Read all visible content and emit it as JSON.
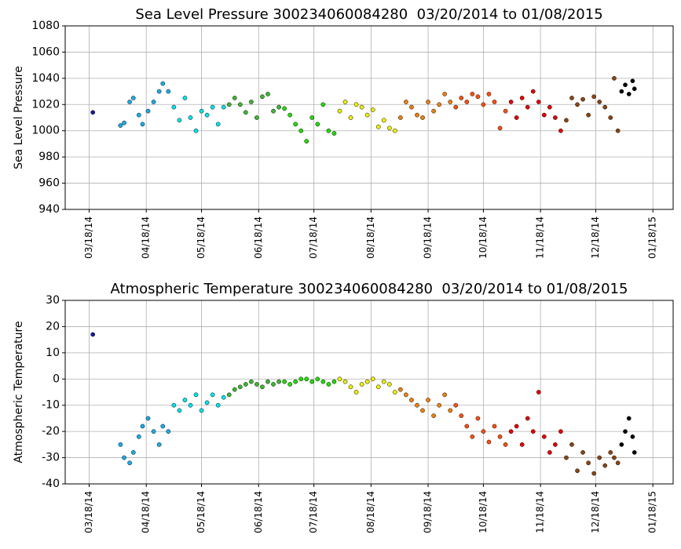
{
  "chart_data": [
    {
      "type": "scatter",
      "title": "Sea Level Pressure 300234060084280  03/20/2014 to 01/08/2015",
      "ylabel": "Sea Level Pressure",
      "xlim": [
        "03/05/14",
        "01/29/15"
      ],
      "xticks": [
        "03/18/14",
        "04/18/14",
        "05/18/14",
        "06/18/14",
        "07/18/14",
        "08/18/14",
        "09/18/14",
        "10/18/14",
        "11/18/14",
        "12/18/14",
        "01/18/15"
      ],
      "ylim": [
        940,
        1080
      ],
      "yticks": [
        940,
        960,
        980,
        1000,
        1020,
        1040,
        1060,
        1080
      ],
      "grid": true,
      "series": [
        {
          "color": "#1a1a9a",
          "x": [
            "03/20/14"
          ],
          "values": [
            1014
          ]
        },
        {
          "color": "#19aee8",
          "x": [
            "04/04/14",
            "04/06/14",
            "04/09/14",
            "04/11/14",
            "04/14/14",
            "04/16/14",
            "04/19/14",
            "04/22/14",
            "04/25/14",
            "04/27/14",
            "04/30/14"
          ],
          "values": [
            1004,
            1006,
            1022,
            1025,
            1012,
            1005,
            1015,
            1022,
            1030,
            1036,
            1030
          ]
        },
        {
          "color": "#00e5ee",
          "x": [
            "05/03/14",
            "05/06/14",
            "05/09/14",
            "05/12/14",
            "05/15/14",
            "05/18/14",
            "05/21/14",
            "05/24/14",
            "05/27/14",
            "05/30/14"
          ],
          "values": [
            1018,
            1008,
            1025,
            1010,
            1000,
            1015,
            1012,
            1018,
            1005,
            1018
          ]
        },
        {
          "color": "#3cb830",
          "x": [
            "06/02/14",
            "06/05/14",
            "06/08/14",
            "06/11/14",
            "06/14/14",
            "06/17/14",
            "06/20/14",
            "06/23/14",
            "06/26/14",
            "06/29/14"
          ],
          "values": [
            1020,
            1025,
            1020,
            1014,
            1022,
            1010,
            1026,
            1028,
            1015,
            1018
          ]
        },
        {
          "color": "#22dd00",
          "x": [
            "07/02/14",
            "07/05/14",
            "07/08/14",
            "07/11/14",
            "07/14/14",
            "07/17/14",
            "07/20/14",
            "07/23/14",
            "07/26/14",
            "07/29/14"
          ],
          "values": [
            1017,
            1012,
            1005,
            1000,
            992,
            1010,
            1005,
            1020,
            1000,
            998
          ]
        },
        {
          "color": "#f0f000",
          "x": [
            "08/01/14",
            "08/04/14",
            "08/07/14",
            "08/10/14",
            "08/13/14",
            "08/16/14",
            "08/19/14",
            "08/22/14",
            "08/25/14",
            "08/28/14",
            "08/31/14"
          ],
          "values": [
            1015,
            1022,
            1010,
            1020,
            1018,
            1012,
            1016,
            1003,
            1008,
            1002,
            1000
          ]
        },
        {
          "color": "#f08010",
          "x": [
            "09/03/14",
            "09/06/14",
            "09/09/14",
            "09/12/14",
            "09/15/14",
            "09/18/14",
            "09/21/14",
            "09/24/14",
            "09/27/14",
            "09/30/14"
          ],
          "values": [
            1010,
            1022,
            1018,
            1012,
            1010,
            1022,
            1015,
            1020,
            1028,
            1022
          ]
        },
        {
          "color": "#ff5010",
          "x": [
            "10/03/14",
            "10/06/14",
            "10/09/14",
            "10/12/14",
            "10/15/14",
            "10/18/14",
            "10/21/14",
            "10/24/14",
            "10/27/14",
            "10/30/14"
          ],
          "values": [
            1018,
            1025,
            1022,
            1028,
            1026,
            1020,
            1028,
            1022,
            1002,
            1015
          ]
        },
        {
          "color": "#e80000",
          "x": [
            "11/02/14",
            "11/05/14",
            "11/08/14",
            "11/11/14",
            "11/14/14",
            "11/17/14",
            "11/20/14",
            "11/23/14",
            "11/26/14",
            "11/29/14"
          ],
          "values": [
            1022,
            1010,
            1025,
            1018,
            1030,
            1022,
            1012,
            1018,
            1010,
            1000
          ]
        },
        {
          "color": "#8b4513",
          "x": [
            "12/02/14",
            "12/05/14",
            "12/08/14",
            "12/11/14",
            "12/14/14",
            "12/17/14",
            "12/20/14",
            "12/23/14",
            "12/26/14",
            "12/28/14",
            "12/30/14"
          ],
          "values": [
            1008,
            1025,
            1020,
            1024,
            1012,
            1026,
            1022,
            1018,
            1010,
            1040,
            1000
          ]
        },
        {
          "color": "#000000",
          "x": [
            "01/01/15",
            "01/03/15",
            "01/05/15",
            "01/07/15",
            "01/08/15"
          ],
          "values": [
            1030,
            1035,
            1028,
            1038,
            1032
          ]
        }
      ]
    },
    {
      "type": "scatter",
      "title": "Atmospheric Temperature 300234060084280  03/20/2014 to 01/08/2015",
      "ylabel": "Atmospheric Temperature",
      "xlim": [
        "03/05/14",
        "01/29/15"
      ],
      "xticks": [
        "03/18/14",
        "04/18/14",
        "05/18/14",
        "06/18/14",
        "07/18/14",
        "08/18/14",
        "09/18/14",
        "10/18/14",
        "11/18/14",
        "12/18/14",
        "01/18/15"
      ],
      "ylim": [
        -40,
        30
      ],
      "yticks": [
        -40,
        -30,
        -20,
        -10,
        0,
        10,
        20,
        30
      ],
      "grid": true,
      "series": [
        {
          "color": "#1a1a9a",
          "x": [
            "03/20/14"
          ],
          "values": [
            17
          ]
        },
        {
          "color": "#19aee8",
          "x": [
            "04/04/14",
            "04/06/14",
            "04/09/14",
            "04/11/14",
            "04/14/14",
            "04/16/14",
            "04/19/14",
            "04/22/14",
            "04/25/14",
            "04/27/14",
            "04/30/14"
          ],
          "values": [
            -25,
            -30,
            -32,
            -28,
            -22,
            -18,
            -15,
            -20,
            -25,
            -18,
            -20
          ]
        },
        {
          "color": "#00e5ee",
          "x": [
            "05/03/14",
            "05/06/14",
            "05/09/14",
            "05/12/14",
            "05/15/14",
            "05/18/14",
            "05/21/14",
            "05/24/14",
            "05/27/14",
            "05/30/14"
          ],
          "values": [
            -10,
            -12,
            -8,
            -10,
            -6,
            -12,
            -9,
            -6,
            -10,
            -7
          ]
        },
        {
          "color": "#3cb830",
          "x": [
            "06/02/14",
            "06/05/14",
            "06/08/14",
            "06/11/14",
            "06/14/14",
            "06/17/14",
            "06/20/14",
            "06/23/14",
            "06/26/14",
            "06/29/14"
          ],
          "values": [
            -6,
            -4,
            -3,
            -2,
            -1,
            -2,
            -3,
            -1,
            -2,
            -1
          ]
        },
        {
          "color": "#22dd00",
          "x": [
            "07/02/14",
            "07/05/14",
            "07/08/14",
            "07/11/14",
            "07/14/14",
            "07/17/14",
            "07/20/14",
            "07/23/14",
            "07/26/14",
            "07/29/14"
          ],
          "values": [
            -1,
            -2,
            -1,
            0,
            0,
            -1,
            0,
            -1,
            -2,
            -1
          ]
        },
        {
          "color": "#f0f000",
          "x": [
            "08/01/14",
            "08/04/14",
            "08/07/14",
            "08/10/14",
            "08/13/14",
            "08/16/14",
            "08/19/14",
            "08/22/14",
            "08/25/14",
            "08/28/14",
            "08/31/14"
          ],
          "values": [
            0,
            -1,
            -3,
            -5,
            -2,
            -1,
            0,
            -3,
            -1,
            -2,
            -5
          ]
        },
        {
          "color": "#f08010",
          "x": [
            "09/03/14",
            "09/06/14",
            "09/09/14",
            "09/12/14",
            "09/15/14",
            "09/18/14",
            "09/21/14",
            "09/24/14",
            "09/27/14",
            "09/30/14"
          ],
          "values": [
            -4,
            -6,
            -8,
            -10,
            -12,
            -8,
            -14,
            -10,
            -6,
            -12
          ]
        },
        {
          "color": "#ff5010",
          "x": [
            "10/03/14",
            "10/06/14",
            "10/09/14",
            "10/12/14",
            "10/15/14",
            "10/18/14",
            "10/21/14",
            "10/24/14",
            "10/27/14",
            "10/30/14"
          ],
          "values": [
            -10,
            -14,
            -18,
            -22,
            -15,
            -20,
            -24,
            -18,
            -22,
            -25
          ]
        },
        {
          "color": "#e80000",
          "x": [
            "11/02/14",
            "11/05/14",
            "11/08/14",
            "11/11/14",
            "11/14/14",
            "11/17/14",
            "11/20/14",
            "11/23/14",
            "11/26/14",
            "11/29/14"
          ],
          "values": [
            -20,
            -18,
            -25,
            -15,
            -20,
            -5,
            -22,
            -28,
            -25,
            -20
          ]
        },
        {
          "color": "#8b4513",
          "x": [
            "12/02/14",
            "12/05/14",
            "12/08/14",
            "12/11/14",
            "12/14/14",
            "12/17/14",
            "12/20/14",
            "12/23/14",
            "12/26/14",
            "12/28/14",
            "12/30/14"
          ],
          "values": [
            -30,
            -25,
            -35,
            -28,
            -32,
            -36,
            -30,
            -33,
            -28,
            -30,
            -32
          ]
        },
        {
          "color": "#000000",
          "x": [
            "01/01/15",
            "01/03/15",
            "01/05/15",
            "01/07/15",
            "01/08/15"
          ],
          "values": [
            -25,
            -20,
            -15,
            -22,
            -28
          ]
        }
      ]
    }
  ]
}
